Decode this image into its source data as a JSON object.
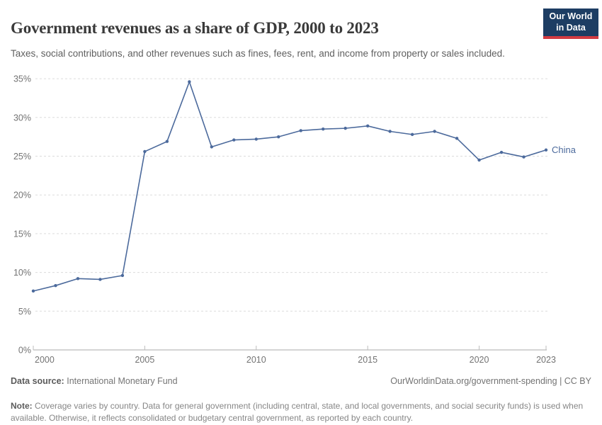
{
  "header": {
    "title": "Government revenues as a share of GDP, 2000 to 2023",
    "subtitle": "Taxes, social contributions, and other revenues such as fines, fees, rent, and income from property or sales included.",
    "logo": {
      "line1": "Our World",
      "line2": "in Data",
      "bg_color": "#1d3d63",
      "bar_color": "#d23b42"
    }
  },
  "chart_data": {
    "type": "line",
    "title": "Government revenues as a share of GDP, 2000 to 2023",
    "xlabel": "",
    "ylabel": "",
    "xlim": [
      2000,
      2023
    ],
    "ylim": [
      0,
      35
    ],
    "x_ticks": [
      2000,
      2005,
      2010,
      2015,
      2020,
      2023
    ],
    "y_ticks": [
      0,
      5,
      10,
      15,
      20,
      25,
      30,
      35
    ],
    "y_tick_suffix": "%",
    "grid": "horizontal-dashed",
    "legend": "inline-end-label",
    "series": [
      {
        "name": "China",
        "color": "#4c6a9c",
        "x": [
          2000,
          2001,
          2002,
          2003,
          2004,
          2005,
          2006,
          2007,
          2008,
          2009,
          2010,
          2011,
          2012,
          2013,
          2014,
          2015,
          2016,
          2017,
          2018,
          2019,
          2020,
          2021,
          2022,
          2023
        ],
        "values": [
          7.6,
          8.3,
          9.2,
          9.1,
          9.6,
          25.6,
          26.9,
          34.6,
          26.2,
          27.1,
          27.2,
          27.5,
          28.3,
          28.5,
          28.6,
          28.9,
          28.2,
          27.8,
          28.2,
          27.3,
          24.5,
          25.5,
          24.9,
          25.8
        ]
      }
    ]
  },
  "footer": {
    "source_label": "Data source:",
    "source_value": "International Monetary Fund",
    "link": "OurWorldinData.org/government-spending | CC BY",
    "note_label": "Note:",
    "note_value": "Coverage varies by country. Data for general government (including central, state, and local governments, and social security funds) is used when available. Otherwise, it reflects consolidated or budgetary central government, as reported by each country."
  }
}
